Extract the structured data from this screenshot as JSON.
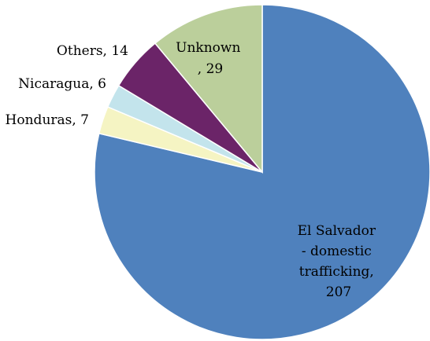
{
  "chart_data": {
    "type": "pie",
    "start_angle_deg": 0,
    "direction": "clockwise",
    "slices": [
      {
        "name": "El Salvador - domestic trafficking",
        "value": 207,
        "color": "#4F81BD",
        "label_lines": [
          "El Salvador",
          "- domestic",
          "trafficking,",
          "207"
        ]
      },
      {
        "name": "Honduras",
        "value": 7,
        "color": "#F5F4C3",
        "label_lines": [
          "Honduras, 7"
        ]
      },
      {
        "name": "Nicaragua",
        "value": 6,
        "color": "#C3E4EC",
        "label_lines": [
          "Nicaragua, 6"
        ]
      },
      {
        "name": "Others",
        "value": 14,
        "color": "#6B2468",
        "label_lines": [
          "Others, 14"
        ]
      },
      {
        "name": "Unknown",
        "value": 29,
        "color": "#BBCF9B",
        "label_lines": [
          "Unknown",
          ", 29"
        ]
      }
    ]
  }
}
